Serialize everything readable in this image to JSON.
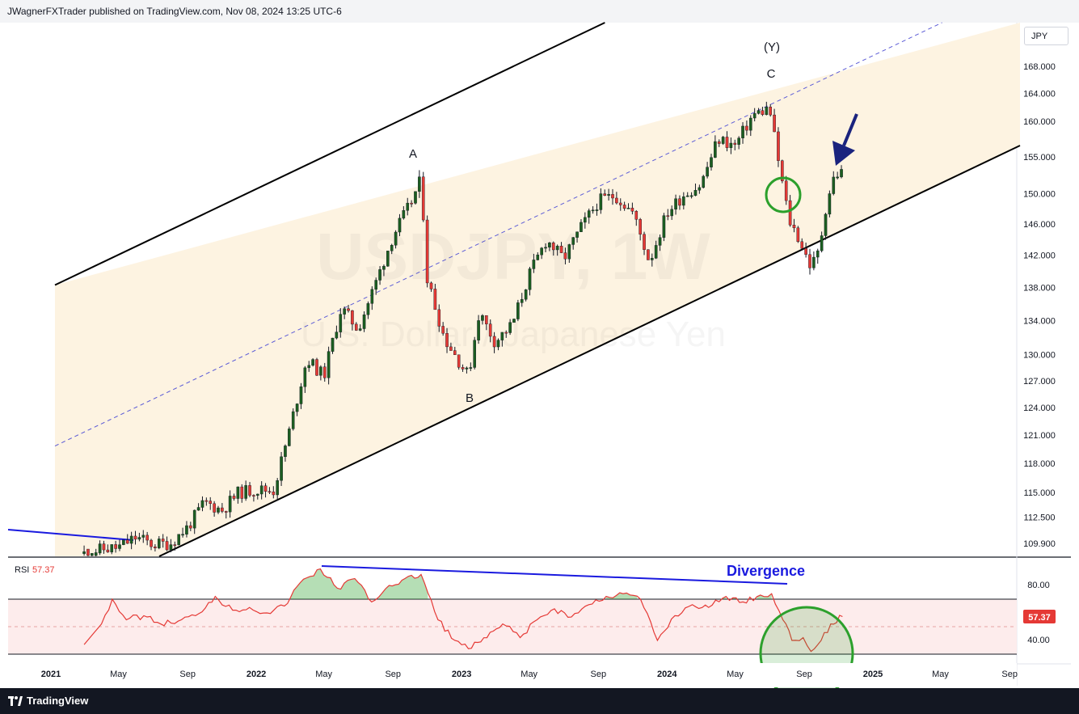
{
  "publisher_line": "JWagnerFXTrader published on TradingView.com, Nov 08, 2024 13:25 UTC-6",
  "brand": "TradingView",
  "currency_badge": "JPY",
  "watermark": {
    "symbol": "USDJPY, 1W",
    "name": "U.S. Dollar / Japanese Yen"
  },
  "colors": {
    "up": "#1b5e20",
    "down": "#e53935",
    "channel_fill": "#fdf3e1",
    "rsi": "#e53935",
    "divergence": "#1a1adf",
    "highlight": "#2ca02c",
    "arrow": "#1a237e"
  },
  "annotations": {
    "A": "A",
    "B": "B",
    "C": "C",
    "Y": "(Y)",
    "divergence": "Divergence"
  },
  "rsi": {
    "label": "RSI",
    "value": "57.37",
    "levels": [
      70,
      30
    ],
    "ticks": [
      "80.00",
      "40.00"
    ]
  },
  "chart_data": {
    "type": "candlestick",
    "timeframe": "1W",
    "symbol": "USDJPY",
    "y_ticks": [
      "168.000",
      "164.000",
      "160.000",
      "155.000",
      "150.000",
      "146.000",
      "142.000",
      "138.000",
      "134.000",
      "130.000",
      "127.000",
      "124.000",
      "121.000",
      "118.000",
      "115.000",
      "112.500",
      "109.900"
    ],
    "x_ticks": [
      {
        "label": "2021",
        "bold": true
      },
      {
        "label": "May"
      },
      {
        "label": "Sep"
      },
      {
        "label": "2022",
        "bold": true
      },
      {
        "label": "May"
      },
      {
        "label": "Sep"
      },
      {
        "label": "2023",
        "bold": true
      },
      {
        "label": "May"
      },
      {
        "label": "Sep"
      },
      {
        "label": "2024",
        "bold": true
      },
      {
        "label": "May"
      },
      {
        "label": "Sep"
      },
      {
        "label": "2025",
        "bold": true
      },
      {
        "label": "May"
      },
      {
        "label": "Sep"
      }
    ],
    "close_series": [
      {
        "date": "2021-03-01",
        "value": 108.9
      },
      {
        "date": "2021-04-01",
        "value": 109.3
      },
      {
        "date": "2021-05-01",
        "value": 109.5
      },
      {
        "date": "2021-06-01",
        "value": 110.5
      },
      {
        "date": "2021-07-01",
        "value": 109.8
      },
      {
        "date": "2021-08-01",
        "value": 109.9
      },
      {
        "date": "2021-09-01",
        "value": 111.5
      },
      {
        "date": "2021-10-01",
        "value": 114.0
      },
      {
        "date": "2021-11-01",
        "value": 113.2
      },
      {
        "date": "2021-12-01",
        "value": 115.0
      },
      {
        "date": "2022-01-01",
        "value": 115.3
      },
      {
        "date": "2022-02-01",
        "value": 115.2
      },
      {
        "date": "2022-03-01",
        "value": 121.5
      },
      {
        "date": "2022-04-01",
        "value": 129.5
      },
      {
        "date": "2022-05-01",
        "value": 127.5
      },
      {
        "date": "2022-06-01",
        "value": 135.5
      },
      {
        "date": "2022-07-01",
        "value": 133.0
      },
      {
        "date": "2022-08-01",
        "value": 138.5
      },
      {
        "date": "2022-09-01",
        "value": 144.5
      },
      {
        "date": "2022-10-01",
        "value": 148.5
      },
      {
        "date": "2022-10-21",
        "value": 151.9
      },
      {
        "date": "2022-11-01",
        "value": 139.0
      },
      {
        "date": "2022-12-01",
        "value": 132.0
      },
      {
        "date": "2023-01-13",
        "value": 127.5
      },
      {
        "date": "2023-02-01",
        "value": 135.0
      },
      {
        "date": "2023-03-01",
        "value": 131.5
      },
      {
        "date": "2023-04-01",
        "value": 133.5
      },
      {
        "date": "2023-05-01",
        "value": 139.5
      },
      {
        "date": "2023-06-01",
        "value": 144.0
      },
      {
        "date": "2023-07-01",
        "value": 141.5
      },
      {
        "date": "2023-08-01",
        "value": 145.5
      },
      {
        "date": "2023-09-01",
        "value": 149.0
      },
      {
        "date": "2023-10-01",
        "value": 149.8
      },
      {
        "date": "2023-11-01",
        "value": 147.5
      },
      {
        "date": "2023-12-01",
        "value": 141.2
      },
      {
        "date": "2024-01-01",
        "value": 147.5
      },
      {
        "date": "2024-02-01",
        "value": 150.0
      },
      {
        "date": "2024-03-01",
        "value": 151.2
      },
      {
        "date": "2024-04-01",
        "value": 157.5
      },
      {
        "date": "2024-05-01",
        "value": 156.5
      },
      {
        "date": "2024-06-01",
        "value": 160.8
      },
      {
        "date": "2024-07-01",
        "value": 161.9
      },
      {
        "date": "2024-07-20",
        "value": 153.0
      },
      {
        "date": "2024-08-05",
        "value": 146.5
      },
      {
        "date": "2024-08-20",
        "value": 144.5
      },
      {
        "date": "2024-09-13",
        "value": 140.5
      },
      {
        "date": "2024-09-27",
        "value": 142.5
      },
      {
        "date": "2024-10-11",
        "value": 149.0
      },
      {
        "date": "2024-10-25",
        "value": 152.5
      },
      {
        "date": "2024-11-08",
        "value": 152.9
      }
    ],
    "rsi_series": [
      {
        "date": "2021-03-01",
        "value": 37
      },
      {
        "date": "2021-04-01",
        "value": 52
      },
      {
        "date": "2021-04-20",
        "value": 70
      },
      {
        "date": "2021-05-15",
        "value": 55
      },
      {
        "date": "2021-06-15",
        "value": 58
      },
      {
        "date": "2021-07-15",
        "value": 52
      },
      {
        "date": "2021-08-15",
        "value": 54
      },
      {
        "date": "2021-09-15",
        "value": 58
      },
      {
        "date": "2021-10-20",
        "value": 72
      },
      {
        "date": "2021-11-20",
        "value": 62
      },
      {
        "date": "2021-12-20",
        "value": 64
      },
      {
        "date": "2022-01-20",
        "value": 60
      },
      {
        "date": "2022-02-20",
        "value": 65
      },
      {
        "date": "2022-03-20",
        "value": 82
      },
      {
        "date": "2022-04-25",
        "value": 92
      },
      {
        "date": "2022-05-25",
        "value": 78
      },
      {
        "date": "2022-06-25",
        "value": 85
      },
      {
        "date": "2022-07-25",
        "value": 68
      },
      {
        "date": "2022-08-25",
        "value": 80
      },
      {
        "date": "2022-10-21",
        "value": 88
      },
      {
        "date": "2022-11-20",
        "value": 55
      },
      {
        "date": "2022-12-20",
        "value": 40
      },
      {
        "date": "2023-01-13",
        "value": 34
      },
      {
        "date": "2023-02-15",
        "value": 42
      },
      {
        "date": "2023-03-15",
        "value": 52
      },
      {
        "date": "2023-04-15",
        "value": 42
      },
      {
        "date": "2023-05-15",
        "value": 55
      },
      {
        "date": "2023-06-15",
        "value": 63
      },
      {
        "date": "2023-07-15",
        "value": 57
      },
      {
        "date": "2023-08-15",
        "value": 66
      },
      {
        "date": "2023-09-15",
        "value": 72
      },
      {
        "date": "2023-10-15",
        "value": 74
      },
      {
        "date": "2023-11-15",
        "value": 70
      },
      {
        "date": "2023-12-15",
        "value": 40
      },
      {
        "date": "2024-01-15",
        "value": 58
      },
      {
        "date": "2024-02-15",
        "value": 66
      },
      {
        "date": "2024-03-15",
        "value": 64
      },
      {
        "date": "2024-04-15",
        "value": 72
      },
      {
        "date": "2024-05-15",
        "value": 68
      },
      {
        "date": "2024-06-15",
        "value": 73
      },
      {
        "date": "2024-07-05",
        "value": 74
      },
      {
        "date": "2024-07-25",
        "value": 55
      },
      {
        "date": "2024-08-10",
        "value": 40
      },
      {
        "date": "2024-08-30",
        "value": 42
      },
      {
        "date": "2024-09-13",
        "value": 32
      },
      {
        "date": "2024-10-01",
        "value": 40
      },
      {
        "date": "2024-10-18",
        "value": 52
      },
      {
        "date": "2024-11-08",
        "value": 57.37
      }
    ]
  }
}
